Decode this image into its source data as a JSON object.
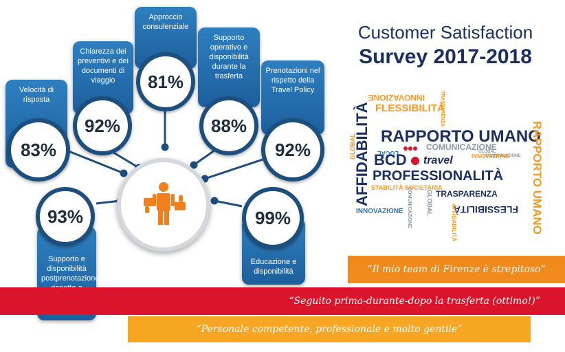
{
  "header": {
    "title_line1": "Customer Satisfaction",
    "title_line2": "Survey 2017-2018"
  },
  "metrics": [
    {
      "label": "Velocità di risposta",
      "value": "83%"
    },
    {
      "label": "Chiarezza dei preventivi e dei documenti di viaggio",
      "value": "92%"
    },
    {
      "label": "Approccio consulenziale",
      "value": "81%"
    },
    {
      "label": "Supporto operativo e disponibilità durante la trasferta",
      "value": "88%"
    },
    {
      "label": "Prenotazioni nel rispetto della Travel Policy",
      "value": "92%"
    },
    {
      "label": "Supporto e disponibilità postprenotazione rispetto a cambi e variazioni",
      "value": "93%"
    },
    {
      "label": "Educazione e disponibilità",
      "value": "99%"
    }
  ],
  "wordcloud": {
    "words": [
      "INNOVAZIONE",
      "FLESSIBILITÀ",
      "AFFIDABILITÀ",
      "RAPPORTO UMANO",
      "GLOBAL",
      "LOCAL",
      "COMUNICAZIONE",
      "PROFESSIONALITÀ",
      "STABILITÀ SOCIETARIA",
      "TRASPARENZA",
      "INNOVAZIONE",
      "GLOBAL",
      "FLESSIBILITÀ",
      "RAPPORTO UMANO",
      "TRASPARENZA",
      "INNOVAZIONE",
      "AFFIDABILITÀ",
      "COMUNICAZIONE",
      "GLOBAL",
      "COMUNICAZIONE"
    ],
    "logo_text": "BCD",
    "logo_sub": "travel",
    "colors": {
      "navy": "#1c2f63",
      "orange": "#f39a26",
      "red": "#d9142b",
      "grey": "#8b96a3",
      "blue": "#2b78b8"
    }
  },
  "quotes": [
    {
      "text": "“Il mio team di Firenze è strepitoso”",
      "color": "#f08a1c"
    },
    {
      "text": "“Seguito prima-durante-dopo la trasferta (ottimo!)”",
      "color": "#d9142b"
    },
    {
      "text": "“Personale competente, professionale e molto gentile”",
      "color": "#f6a623"
    }
  ],
  "icons": [
    "thumbs-down-icon",
    "person-icon",
    "thumbs-up-icon"
  ]
}
